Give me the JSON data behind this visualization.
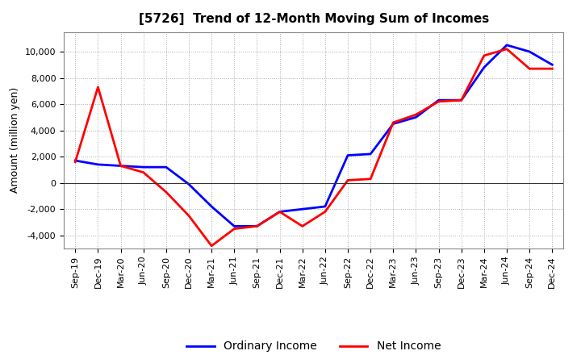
{
  "title": "[5726]  Trend of 12-Month Moving Sum of Incomes",
  "ylabel": "Amount (million yen)",
  "background_color": "#ffffff",
  "plot_bg_color": "#ffffff",
  "grid_color": "#aaaaaa",
  "x_labels": [
    "Sep-19",
    "Dec-19",
    "Mar-20",
    "Jun-20",
    "Sep-20",
    "Dec-20",
    "Mar-21",
    "Jun-21",
    "Sep-21",
    "Dec-21",
    "Mar-22",
    "Jun-22",
    "Sep-22",
    "Dec-22",
    "Mar-23",
    "Jun-23",
    "Sep-23",
    "Dec-23",
    "Mar-24",
    "Jun-24",
    "Sep-24",
    "Dec-24"
  ],
  "ordinary_income": [
    1700,
    1400,
    1300,
    1200,
    1200,
    -100,
    -1800,
    -3300,
    -3300,
    -2200,
    -2000,
    -1800,
    2100,
    2200,
    4500,
    5000,
    6300,
    6300,
    8800,
    10500,
    10000,
    9000
  ],
  "net_income": [
    1600,
    7300,
    1300,
    800,
    -700,
    -2500,
    -4800,
    -3500,
    -3300,
    -2200,
    -3300,
    -2200,
    200,
    300,
    4600,
    5200,
    6200,
    6300,
    9700,
    10200,
    8700,
    8700
  ],
  "ordinary_color": "#0000ff",
  "net_color": "#ff0000",
  "ylim": [
    -5000,
    11500
  ],
  "yticks": [
    -4000,
    -2000,
    0,
    2000,
    4000,
    6000,
    8000,
    10000
  ],
  "line_width": 2.0,
  "title_fontsize": 11,
  "legend_fontsize": 10,
  "axis_label_fontsize": 9,
  "tick_fontsize": 8
}
